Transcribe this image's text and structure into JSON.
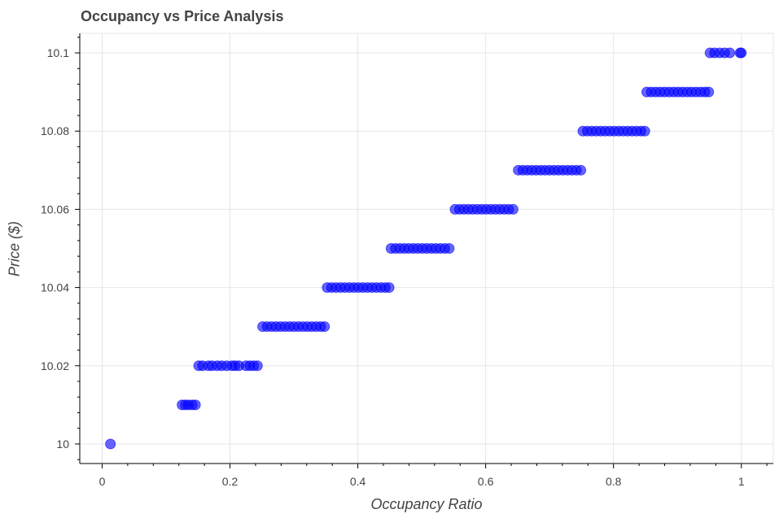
{
  "chart_data": {
    "type": "scatter",
    "title": "Occupancy vs Price Analysis",
    "xlabel": "Occupancy Ratio",
    "ylabel": "Price ($)",
    "xlim": [
      -0.035,
      1.05
    ],
    "ylim": [
      9.995,
      10.105
    ],
    "x_ticks": [
      0,
      0.2,
      0.4,
      0.6,
      0.8,
      1
    ],
    "x_tick_labels": [
      "0",
      "0.2",
      "0.4",
      "0.6",
      "0.8",
      "1"
    ],
    "y_ticks": [
      10,
      10.02,
      10.04,
      10.06,
      10.08,
      10.1
    ],
    "y_tick_labels": [
      "10",
      "10.02",
      "10.04",
      "10.06",
      "10.08",
      "10.1"
    ],
    "grid": true,
    "marker_color": "#0000ff",
    "series": [
      {
        "points": [
          {
            "x": 0.013,
            "y": 10.0
          },
          {
            "x": 0.125,
            "y": 10.01
          },
          {
            "x": 0.13,
            "y": 10.01
          },
          {
            "x": 0.135,
            "y": 10.01
          },
          {
            "x": 0.141,
            "y": 10.01
          },
          {
            "x": 0.146,
            "y": 10.01
          },
          {
            "x": 0.151,
            "y": 10.02
          },
          {
            "x": 0.157,
            "y": 10.02
          },
          {
            "x": 0.166,
            "y": 10.02
          },
          {
            "x": 0.172,
            "y": 10.02
          },
          {
            "x": 0.18,
            "y": 10.02
          },
          {
            "x": 0.187,
            "y": 10.02
          },
          {
            "x": 0.195,
            "y": 10.02
          },
          {
            "x": 0.203,
            "y": 10.02
          },
          {
            "x": 0.208,
            "y": 10.02
          },
          {
            "x": 0.214,
            "y": 10.02
          },
          {
            "x": 0.225,
            "y": 10.02
          },
          {
            "x": 0.231,
            "y": 10.02
          },
          {
            "x": 0.237,
            "y": 10.02
          },
          {
            "x": 0.243,
            "y": 10.02
          },
          {
            "x": 0.251,
            "y": 10.03
          },
          {
            "x": 0.258,
            "y": 10.03
          },
          {
            "x": 0.265,
            "y": 10.03
          },
          {
            "x": 0.272,
            "y": 10.03
          },
          {
            "x": 0.279,
            "y": 10.03
          },
          {
            "x": 0.286,
            "y": 10.03
          },
          {
            "x": 0.293,
            "y": 10.03
          },
          {
            "x": 0.3,
            "y": 10.03
          },
          {
            "x": 0.307,
            "y": 10.03
          },
          {
            "x": 0.314,
            "y": 10.03
          },
          {
            "x": 0.321,
            "y": 10.03
          },
          {
            "x": 0.328,
            "y": 10.03
          },
          {
            "x": 0.335,
            "y": 10.03
          },
          {
            "x": 0.342,
            "y": 10.03
          },
          {
            "x": 0.348,
            "y": 10.03
          },
          {
            "x": 0.352,
            "y": 10.04
          },
          {
            "x": 0.359,
            "y": 10.04
          },
          {
            "x": 0.366,
            "y": 10.04
          },
          {
            "x": 0.373,
            "y": 10.04
          },
          {
            "x": 0.38,
            "y": 10.04
          },
          {
            "x": 0.387,
            "y": 10.04
          },
          {
            "x": 0.394,
            "y": 10.04
          },
          {
            "x": 0.401,
            "y": 10.04
          },
          {
            "x": 0.408,
            "y": 10.04
          },
          {
            "x": 0.415,
            "y": 10.04
          },
          {
            "x": 0.422,
            "y": 10.04
          },
          {
            "x": 0.429,
            "y": 10.04
          },
          {
            "x": 0.436,
            "y": 10.04
          },
          {
            "x": 0.443,
            "y": 10.04
          },
          {
            "x": 0.449,
            "y": 10.04
          },
          {
            "x": 0.452,
            "y": 10.05
          },
          {
            "x": 0.459,
            "y": 10.05
          },
          {
            "x": 0.466,
            "y": 10.05
          },
          {
            "x": 0.473,
            "y": 10.05
          },
          {
            "x": 0.48,
            "y": 10.05
          },
          {
            "x": 0.487,
            "y": 10.05
          },
          {
            "x": 0.494,
            "y": 10.05
          },
          {
            "x": 0.501,
            "y": 10.05
          },
          {
            "x": 0.508,
            "y": 10.05
          },
          {
            "x": 0.515,
            "y": 10.05
          },
          {
            "x": 0.522,
            "y": 10.05
          },
          {
            "x": 0.529,
            "y": 10.05
          },
          {
            "x": 0.536,
            "y": 10.05
          },
          {
            "x": 0.543,
            "y": 10.05
          },
          {
            "x": 0.552,
            "y": 10.06
          },
          {
            "x": 0.559,
            "y": 10.06
          },
          {
            "x": 0.566,
            "y": 10.06
          },
          {
            "x": 0.573,
            "y": 10.06
          },
          {
            "x": 0.58,
            "y": 10.06
          },
          {
            "x": 0.587,
            "y": 10.06
          },
          {
            "x": 0.594,
            "y": 10.06
          },
          {
            "x": 0.601,
            "y": 10.06
          },
          {
            "x": 0.608,
            "y": 10.06
          },
          {
            "x": 0.615,
            "y": 10.06
          },
          {
            "x": 0.622,
            "y": 10.06
          },
          {
            "x": 0.629,
            "y": 10.06
          },
          {
            "x": 0.636,
            "y": 10.06
          },
          {
            "x": 0.643,
            "y": 10.06
          },
          {
            "x": 0.651,
            "y": 10.07
          },
          {
            "x": 0.658,
            "y": 10.07
          },
          {
            "x": 0.665,
            "y": 10.07
          },
          {
            "x": 0.672,
            "y": 10.07
          },
          {
            "x": 0.679,
            "y": 10.07
          },
          {
            "x": 0.686,
            "y": 10.07
          },
          {
            "x": 0.693,
            "y": 10.07
          },
          {
            "x": 0.7,
            "y": 10.07
          },
          {
            "x": 0.707,
            "y": 10.07
          },
          {
            "x": 0.714,
            "y": 10.07
          },
          {
            "x": 0.721,
            "y": 10.07
          },
          {
            "x": 0.728,
            "y": 10.07
          },
          {
            "x": 0.735,
            "y": 10.07
          },
          {
            "x": 0.742,
            "y": 10.07
          },
          {
            "x": 0.749,
            "y": 10.07
          },
          {
            "x": 0.752,
            "y": 10.08
          },
          {
            "x": 0.759,
            "y": 10.08
          },
          {
            "x": 0.766,
            "y": 10.08
          },
          {
            "x": 0.773,
            "y": 10.08
          },
          {
            "x": 0.78,
            "y": 10.08
          },
          {
            "x": 0.787,
            "y": 10.08
          },
          {
            "x": 0.794,
            "y": 10.08
          },
          {
            "x": 0.801,
            "y": 10.08
          },
          {
            "x": 0.808,
            "y": 10.08
          },
          {
            "x": 0.815,
            "y": 10.08
          },
          {
            "x": 0.822,
            "y": 10.08
          },
          {
            "x": 0.829,
            "y": 10.08
          },
          {
            "x": 0.836,
            "y": 10.08
          },
          {
            "x": 0.843,
            "y": 10.08
          },
          {
            "x": 0.849,
            "y": 10.08
          },
          {
            "x": 0.852,
            "y": 10.09
          },
          {
            "x": 0.859,
            "y": 10.09
          },
          {
            "x": 0.866,
            "y": 10.09
          },
          {
            "x": 0.873,
            "y": 10.09
          },
          {
            "x": 0.88,
            "y": 10.09
          },
          {
            "x": 0.887,
            "y": 10.09
          },
          {
            "x": 0.894,
            "y": 10.09
          },
          {
            "x": 0.901,
            "y": 10.09
          },
          {
            "x": 0.908,
            "y": 10.09
          },
          {
            "x": 0.915,
            "y": 10.09
          },
          {
            "x": 0.922,
            "y": 10.09
          },
          {
            "x": 0.929,
            "y": 10.09
          },
          {
            "x": 0.936,
            "y": 10.09
          },
          {
            "x": 0.943,
            "y": 10.09
          },
          {
            "x": 0.949,
            "y": 10.09
          },
          {
            "x": 0.951,
            "y": 10.1
          },
          {
            "x": 0.958,
            "y": 10.1
          },
          {
            "x": 0.966,
            "y": 10.1
          },
          {
            "x": 0.974,
            "y": 10.1
          },
          {
            "x": 0.982,
            "y": 10.1
          },
          {
            "x": 0.998,
            "y": 10.1
          },
          {
            "x": 1.0,
            "y": 10.1
          }
        ]
      }
    ]
  }
}
